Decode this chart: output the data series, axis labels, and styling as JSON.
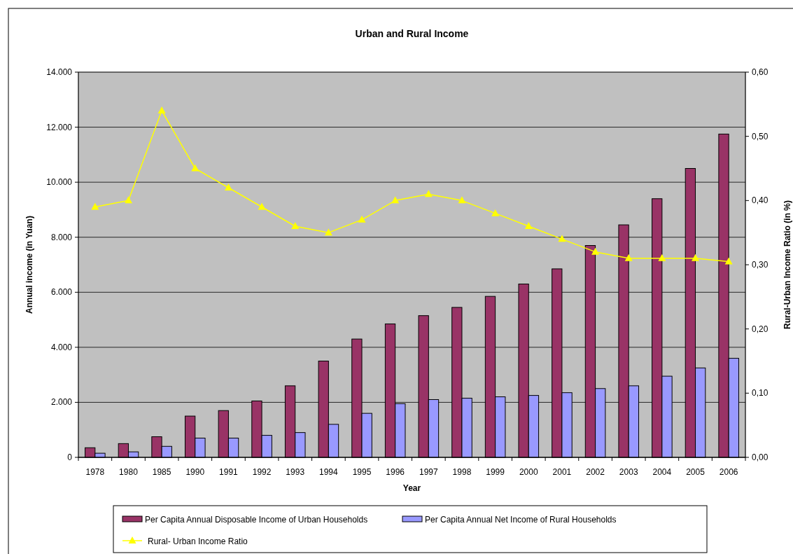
{
  "chart_data": {
    "type": "bar",
    "title": "Urban and Rural Income",
    "xlabel": "Year",
    "ylabel": "Annual income (in Yuan)",
    "y2label": "Rural-Urban Income Ratio (in %)",
    "categories": [
      "1978",
      "1980",
      "1985",
      "1990",
      "1991",
      "1992",
      "1993",
      "1994",
      "1995",
      "1996",
      "1997",
      "1998",
      "1999",
      "2000",
      "2001",
      "2002",
      "2003",
      "2004",
      "2005",
      "2006"
    ],
    "series": [
      {
        "name": "Per Capita Annual Disposable Income of Urban Households",
        "color": "#993366",
        "values": [
          350,
          500,
          750,
          1500,
          1700,
          2050,
          2600,
          3500,
          4300,
          4850,
          5150,
          5450,
          5850,
          6300,
          6850,
          7700,
          8450,
          9400,
          10500,
          11750
        ]
      },
      {
        "name": "Per Capita Annual Net Income of Rural Households",
        "color": "#9999ff",
        "values": [
          150,
          200,
          400,
          700,
          700,
          800,
          900,
          1200,
          1600,
          1950,
          2100,
          2150,
          2200,
          2250,
          2350,
          2500,
          2600,
          2950,
          3250,
          3600
        ]
      },
      {
        "name": "Rural- Urban Income Ratio",
        "type": "line",
        "axis": "y2",
        "color": "#ffff00",
        "marker": "triangle",
        "values": [
          0.39,
          0.4,
          0.54,
          0.45,
          0.42,
          0.39,
          0.36,
          0.35,
          0.37,
          0.4,
          0.41,
          0.4,
          0.38,
          0.36,
          0.34,
          0.32,
          0.31,
          0.31,
          0.31,
          0.305
        ]
      }
    ],
    "ylim": [
      0,
      14000
    ],
    "yticks": [
      {
        "value": 0,
        "label": "0"
      },
      {
        "value": 2000,
        "label": "2.000"
      },
      {
        "value": 4000,
        "label": "4.000"
      },
      {
        "value": 6000,
        "label": "6.000"
      },
      {
        "value": 8000,
        "label": "8.000"
      },
      {
        "value": 10000,
        "label": "10.000"
      },
      {
        "value": 12000,
        "label": "12.000"
      },
      {
        "value": 14000,
        "label": "14.000"
      }
    ],
    "y2lim": [
      0,
      0.6
    ],
    "y2ticks": [
      {
        "value": 0,
        "label": "0,00"
      },
      {
        "value": 0.1,
        "label": "0,10"
      },
      {
        "value": 0.2,
        "label": "0,20"
      },
      {
        "value": 0.3,
        "label": "0,30"
      },
      {
        "value": 0.4,
        "label": "0,40"
      },
      {
        "value": 0.5,
        "label": "0,50"
      },
      {
        "value": 0.6,
        "label": "0,60"
      }
    ],
    "grid": "y",
    "legend": "bottom"
  }
}
